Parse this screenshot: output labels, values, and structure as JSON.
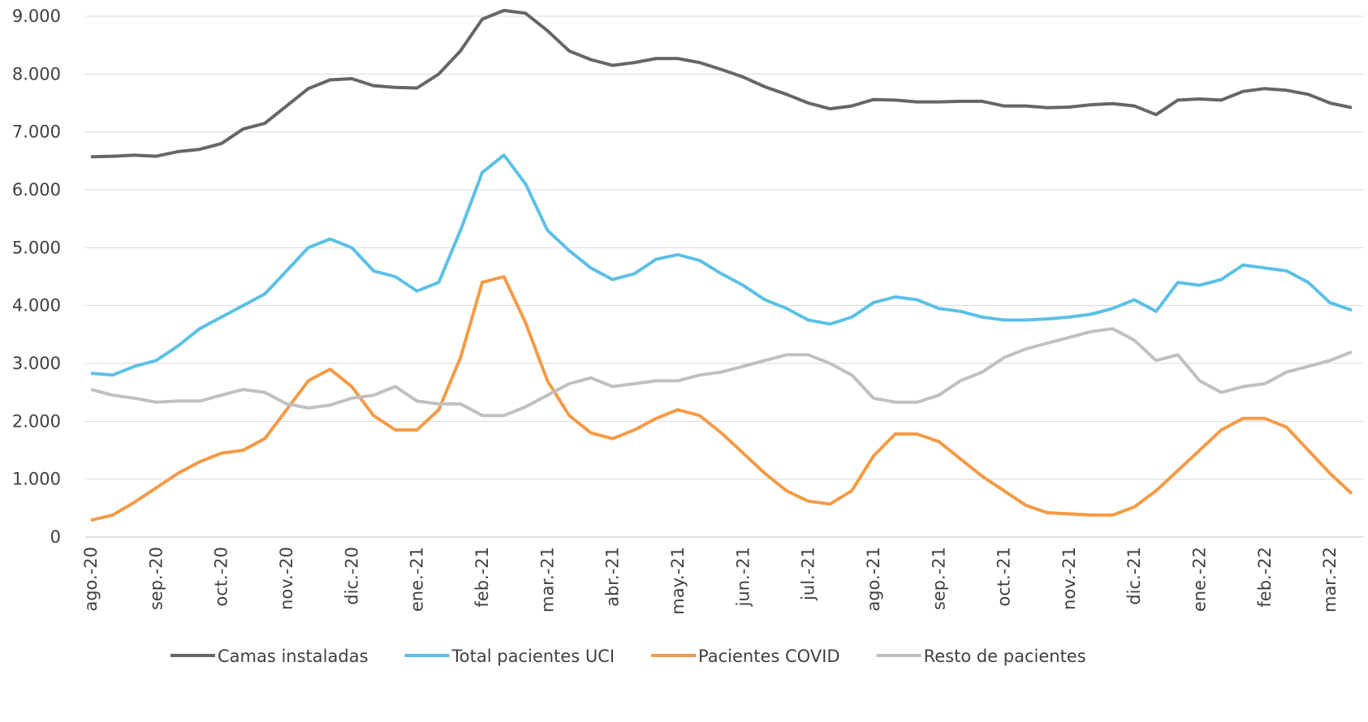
{
  "chart_data": {
    "type": "line",
    "categories": [
      "ago.-20",
      null,
      null,
      "sep.-20",
      null,
      null,
      "oct.-20",
      null,
      null,
      "nov.-20",
      null,
      null,
      "dic.-20",
      null,
      null,
      "ene.-21",
      null,
      null,
      "feb.-21",
      null,
      null,
      "mar.-21",
      null,
      null,
      "abr.-21",
      null,
      null,
      "may.-21",
      null,
      null,
      "jun.-21",
      null,
      null,
      "jul.-21",
      null,
      null,
      "ago.-21",
      null,
      null,
      "sep.-21",
      null,
      null,
      "oct.-21",
      null,
      null,
      "nov.-21",
      null,
      null,
      "dic.-21",
      null,
      null,
      "ene.-22",
      null,
      null,
      "feb.-22",
      null,
      null,
      "mar.-22",
      null
    ],
    "series": [
      {
        "name": "Camas instaladas",
        "color": "#666666",
        "values": [
          6570,
          6580,
          6600,
          6580,
          6660,
          6700,
          6800,
          7050,
          7150,
          7450,
          7750,
          7900,
          7920,
          7800,
          7770,
          7760,
          8000,
          8400,
          8950,
          9100,
          9050,
          8750,
          8400,
          8250,
          8150,
          8200,
          8270,
          8270,
          8200,
          8080,
          7950,
          7780,
          7650,
          7500,
          7400,
          7450,
          7560,
          7550,
          7520,
          7520,
          7530,
          7530,
          7450,
          7450,
          7420,
          7430,
          7470,
          7490,
          7450,
          7300,
          7550,
          7570,
          7550,
          7700,
          7750,
          7720,
          7650,
          7500,
          7420
        ]
      },
      {
        "name": "Total pacientes UCI",
        "color": "#5bc0e6",
        "values": [
          2830,
          2800,
          2950,
          3050,
          3300,
          3600,
          3800,
          4000,
          4200,
          4600,
          5000,
          5150,
          5000,
          4600,
          4500,
          4250,
          4400,
          5300,
          6300,
          6600,
          6100,
          5300,
          4950,
          4650,
          4450,
          4550,
          4800,
          4880,
          4780,
          4550,
          4350,
          4100,
          3950,
          3750,
          3680,
          3800,
          4050,
          4150,
          4100,
          3950,
          3900,
          3800,
          3750,
          3750,
          3770,
          3800,
          3850,
          3950,
          4100,
          3900,
          4400,
          4350,
          4450,
          4700,
          4650,
          4600,
          4400,
          4050,
          3920
        ]
      },
      {
        "name": "Pacientes COVID",
        "color": "#f59a45",
        "values": [
          290,
          380,
          600,
          850,
          1100,
          1300,
          1450,
          1500,
          1700,
          2200,
          2700,
          2900,
          2600,
          2100,
          1850,
          1850,
          2200,
          3100,
          4400,
          4500,
          3700,
          2700,
          2100,
          1800,
          1700,
          1850,
          2050,
          2200,
          2100,
          1800,
          1450,
          1100,
          800,
          620,
          570,
          800,
          1400,
          1780,
          1780,
          1650,
          1350,
          1050,
          800,
          550,
          420,
          400,
          380,
          380,
          520,
          800,
          1150,
          1500,
          1850,
          2050,
          2050,
          1900,
          1500,
          1100,
          750
        ]
      },
      {
        "name": "Resto de pacientes",
        "color": "#c0c0c0",
        "values": [
          2550,
          2450,
          2400,
          2330,
          2350,
          2350,
          2450,
          2550,
          2500,
          2300,
          2230,
          2280,
          2400,
          2450,
          2600,
          2350,
          2300,
          2300,
          2100,
          2100,
          2250,
          2450,
          2650,
          2750,
          2600,
          2650,
          2700,
          2700,
          2800,
          2850,
          2950,
          3050,
          3150,
          3150,
          3000,
          2800,
          2400,
          2330,
          2330,
          2450,
          2700,
          2850,
          3100,
          3250,
          3350,
          3450,
          3550,
          3600,
          3400,
          3050,
          3150,
          2700,
          2500,
          2600,
          2650,
          2850,
          2950,
          3050,
          3200
        ]
      }
    ],
    "ylim": [
      0,
      9000
    ],
    "yticks": [
      0,
      {
        "value": 1000,
        "label": "1.000"
      },
      {
        "value": 2000,
        "label": "2.000"
      },
      {
        "value": 3000,
        "label": "3.000"
      },
      {
        "value": 4000,
        "label": "4.000"
      },
      {
        "value": 5000,
        "label": "5.000"
      },
      {
        "value": 6000,
        "label": "6.000"
      },
      {
        "value": 7000,
        "label": "7.000"
      },
      {
        "value": 8000,
        "label": "8.000"
      },
      {
        "value": 9000,
        "label": "9.000"
      }
    ],
    "grid": true,
    "legend": "bottom"
  }
}
